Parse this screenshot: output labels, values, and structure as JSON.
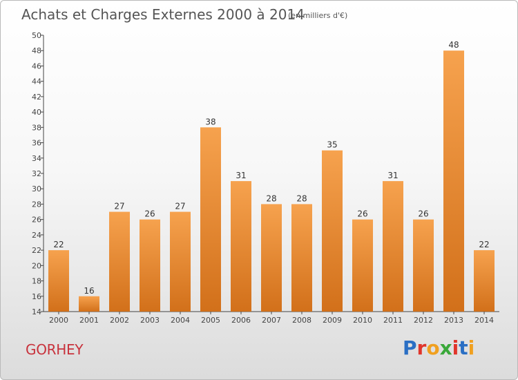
{
  "header": {
    "title": "Achats et Charges Externes 2000 à 2014",
    "unit_note": "(en milliers d'€)"
  },
  "footer": {
    "commune": "GORHEY",
    "brand": "Proxiti",
    "brand_letter_colors": [
      "#2a6fc4",
      "#e0352b",
      "#f0a020",
      "#3aa83a",
      "#e0352b",
      "#2a6fc4",
      "#f0a020"
    ]
  },
  "chart_data": {
    "type": "bar",
    "title": "Achats et Charges Externes 2000 à 2014",
    "subtitle": "(en milliers d'€)",
    "xlabel": "",
    "ylabel": "",
    "categories": [
      "2000",
      "2001",
      "2002",
      "2003",
      "2004",
      "2005",
      "2006",
      "2007",
      "2008",
      "2009",
      "2010",
      "2011",
      "2012",
      "2013",
      "2014"
    ],
    "values": [
      22,
      16,
      27,
      26,
      27,
      38,
      31,
      28,
      28,
      35,
      26,
      31,
      26,
      48,
      22
    ],
    "ylim": [
      14,
      50
    ],
    "yticks": [
      14,
      16,
      18,
      20,
      22,
      24,
      26,
      28,
      30,
      32,
      34,
      36,
      38,
      40,
      42,
      44,
      46,
      48,
      50
    ],
    "grid": false,
    "legend": "none",
    "bar_color_top": "#f6a24e",
    "bar_color_bottom": "#d2701a"
  }
}
